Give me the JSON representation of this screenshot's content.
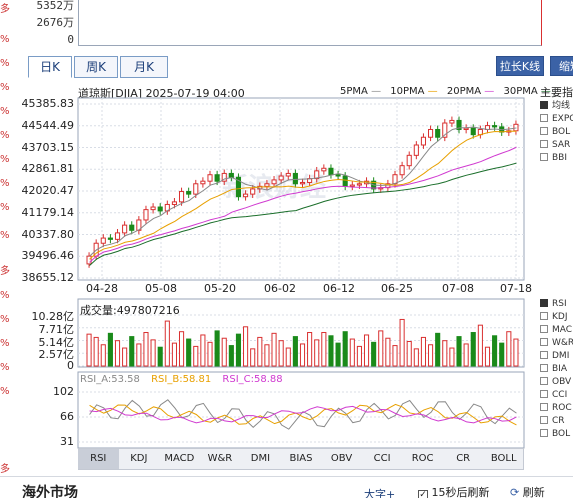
{
  "top_axis": {
    "values": [
      "5352万",
      "2676万",
      "0"
    ]
  },
  "period_tabs": [
    {
      "label": "日K",
      "active": true
    },
    {
      "label": "周K",
      "active": false
    },
    {
      "label": "月K",
      "active": false
    }
  ],
  "buttons": {
    "stretch": "拉长K线",
    "shrink": "缩短"
  },
  "kline": {
    "title": "道琼斯[DJIA] 2025-07-19 04:00",
    "ma_legend": [
      {
        "label": "5PMA",
        "color": "#888888"
      },
      {
        "label": "10PMA",
        "color": "#e8a000"
      },
      {
        "label": "20PMA",
        "color": "#d03ad0"
      },
      {
        "label": "30PMA",
        "color": "#1a6e2a"
      }
    ],
    "y_labels": [
      "45385.83",
      "44544.49",
      "43703.15",
      "42861.81",
      "42020.47",
      "41179.14",
      "40337.80",
      "39496.46",
      "38655.12"
    ],
    "x_labels": [
      "04-28",
      "05-08",
      "05-20",
      "06-02",
      "06-12",
      "06-25",
      "07-08",
      "07-18"
    ],
    "watermark": "新浪财经"
  },
  "volume": {
    "title": "成交量:497807216",
    "y_labels": [
      "10.28亿",
      "7.71亿",
      "5.14亿",
      "2.57亿",
      "0"
    ]
  },
  "rsi": {
    "labels": [
      {
        "text": "RSI_A:53.58",
        "color": "#888888"
      },
      {
        "text": "RSI_B:58.81",
        "color": "#e8a000"
      },
      {
        "text": "RSI_C:58.88",
        "color": "#d03ad0"
      }
    ],
    "y_labels": [
      "102",
      "66",
      "31"
    ]
  },
  "indicator_tabs": [
    "RSI",
    "KDJ",
    "MACD",
    "W&R",
    "DMI",
    "BIAS",
    "OBV",
    "CCI",
    "ROC",
    "CR",
    "BOLL"
  ],
  "right_panel": {
    "title": "主要指",
    "items_top": [
      {
        "label": "均线",
        "checked": true
      },
      {
        "label": "EXPO",
        "checked": false
      },
      {
        "label": "BOL",
        "checked": false
      },
      {
        "label": "SAR",
        "checked": false
      },
      {
        "label": "BBI",
        "checked": false
      }
    ],
    "items_bottom": [
      {
        "label": "RSI",
        "checked": true
      },
      {
        "label": "KDJ",
        "checked": false
      },
      {
        "label": "MAC",
        "checked": false
      },
      {
        "label": "W&R",
        "checked": false
      },
      {
        "label": "DMI",
        "checked": false
      },
      {
        "label": "BIA",
        "checked": false
      },
      {
        "label": "OBV",
        "checked": false
      },
      {
        "label": "CCI",
        "checked": false
      },
      {
        "label": "ROC",
        "checked": false
      },
      {
        "label": "CR",
        "checked": false
      },
      {
        "label": "BOL",
        "checked": false
      }
    ]
  },
  "left_strip": [
    "多",
    "%",
    "%",
    "%",
    "%",
    "%",
    "%",
    "%",
    "%",
    "%",
    "多",
    "%",
    "%",
    "%",
    "%",
    "%",
    "多"
  ],
  "footer": {
    "title": "海外市场",
    "font_size": "大字+",
    "refresh_label": "15秒后刷新",
    "refresh_checked": true,
    "refresh_brand": "刷新"
  },
  "colors": {
    "up": "#d93030",
    "down": "#1a8a1a",
    "panel_border": "#9aa6b8"
  }
}
